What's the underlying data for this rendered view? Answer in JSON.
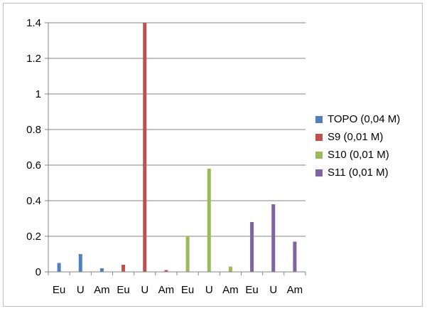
{
  "chart_data": {
    "type": "bar",
    "title": "",
    "xlabel": "",
    "ylabel": "",
    "ylim": [
      0,
      1.4
    ],
    "yticks": [
      "0",
      "0.2",
      "0.4",
      "0.6",
      "0.8",
      "1",
      "1.2",
      "1.4"
    ],
    "grid": true,
    "legend_position": "right",
    "categories": [
      "Eu",
      "U",
      "Am",
      "Eu",
      "U",
      "Am",
      "Eu",
      "U",
      "Am",
      "Eu",
      "U",
      "Am"
    ],
    "series": [
      {
        "name": "TOPO (0,04 M)",
        "color": "#4f81bd",
        "values": [
          0.05,
          0.1,
          0.02,
          null,
          null,
          null,
          null,
          null,
          null,
          null,
          null,
          null
        ]
      },
      {
        "name": "S9 (0,01 M)",
        "color": "#c0504d",
        "values": [
          null,
          null,
          null,
          0.04,
          1.4,
          0.01,
          null,
          null,
          null,
          null,
          null,
          null
        ]
      },
      {
        "name": "S10 (0,01 M)",
        "color": "#9bbb59",
        "values": [
          null,
          null,
          null,
          null,
          null,
          null,
          0.2,
          0.58,
          0.03,
          null,
          null,
          null
        ]
      },
      {
        "name": "S11 (0,01 M)",
        "color": "#8064a2",
        "values": [
          null,
          null,
          null,
          null,
          null,
          null,
          null,
          null,
          null,
          0.28,
          0.38,
          0.17
        ]
      }
    ]
  }
}
